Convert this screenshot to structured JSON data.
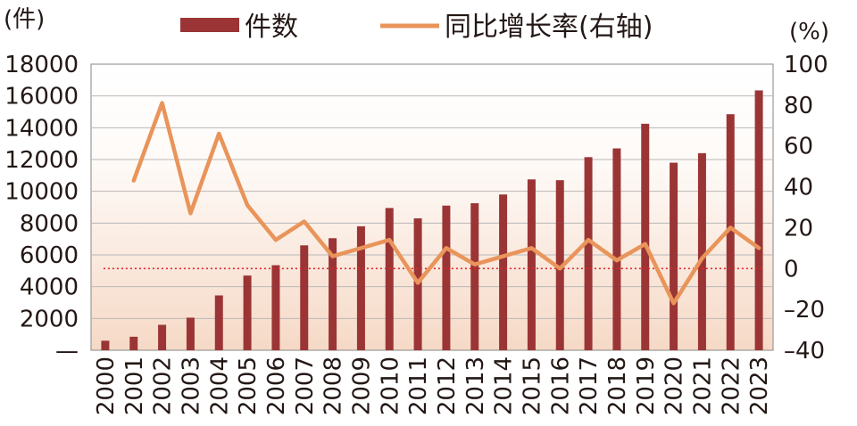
{
  "chart_data": {
    "type": "bar+line",
    "categories": [
      "2000",
      "2001",
      "2002",
      "2003",
      "2004",
      "2005",
      "2006",
      "2007",
      "2008",
      "2009",
      "2010",
      "2011",
      "2012",
      "2013",
      "2014",
      "2015",
      "2016",
      "2017",
      "2018",
      "2019",
      "2020",
      "2021",
      "2022",
      "2023"
    ],
    "series": [
      {
        "name": "件数",
        "type": "bar",
        "axis": "left",
        "color": "#9b3535",
        "values": [
          600,
          850,
          1600,
          2050,
          3450,
          4700,
          5350,
          6600,
          7050,
          7800,
          8950,
          8300,
          9100,
          9250,
          9800,
          10750,
          10700,
          12150,
          12700,
          14250,
          11800,
          12400,
          14850,
          16350
        ]
      },
      {
        "name": "同比增长率(右轴)",
        "type": "line",
        "axis": "right",
        "color": "#e9945a",
        "values": [
          null,
          43,
          81,
          27,
          66,
          31,
          14,
          23,
          6,
          10,
          14,
          -7,
          10,
          2,
          6,
          10,
          0,
          14,
          4,
          12,
          -17,
          5,
          20,
          10
        ]
      }
    ],
    "left_axis": {
      "unit": "(件)",
      "ticks": [
        "18000",
        "16000",
        "14000",
        "12000",
        "10000",
        "8000",
        "6000",
        "4000",
        "2000",
        "—"
      ],
      "ylim": [
        0,
        18000
      ]
    },
    "right_axis": {
      "unit": "(%)",
      "ticks": [
        "100",
        "80",
        "60",
        "40",
        "20",
        "0",
        "–20",
        "–40"
      ],
      "ylim": [
        -40,
        100
      ]
    },
    "reference_line": {
      "value": 0,
      "axis": "right",
      "style": "dotted",
      "color": "#e0252b"
    },
    "grid": true,
    "legend": "top"
  }
}
